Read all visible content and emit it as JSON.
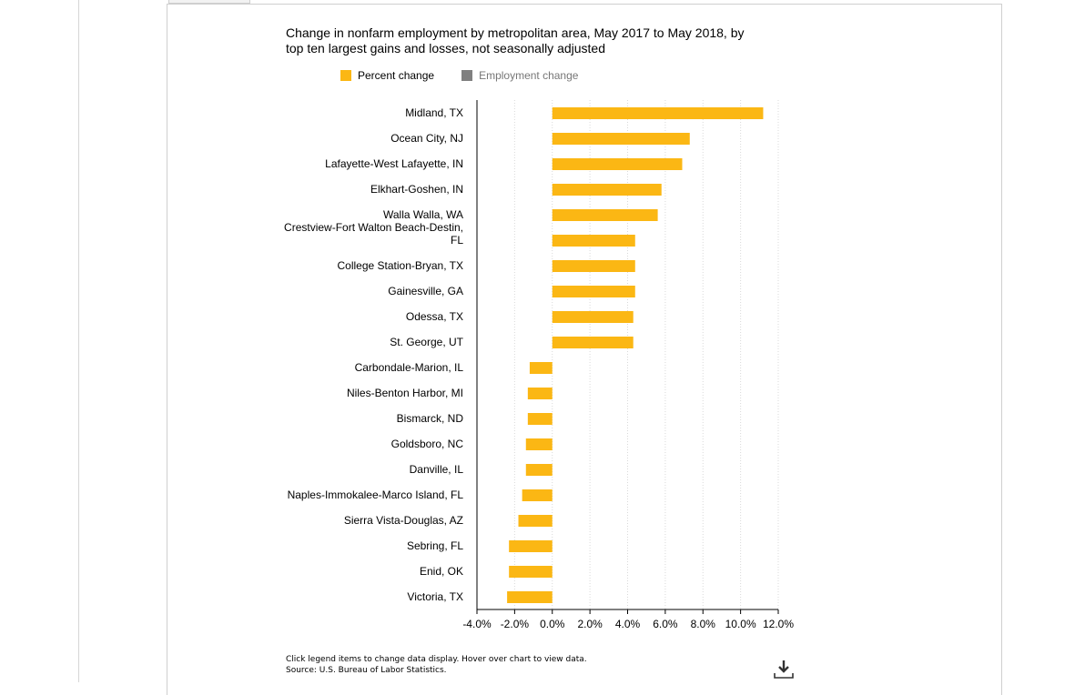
{
  "chart_data": {
    "type": "bar",
    "orientation": "horizontal",
    "title": "Change in nonfarm employment by metropolitan area, May 2017 to May 2018, by top ten largest gains and losses, not seasonally adjusted",
    "legend": {
      "position": "top",
      "items": [
        {
          "label": "Percent change",
          "color": "#fbb714",
          "active": true
        },
        {
          "label": "Employment change",
          "color": "#808080",
          "active": false
        }
      ]
    },
    "categories": [
      "Midland, TX",
      "Ocean City, NJ",
      "Lafayette-West Lafayette, IN",
      "Elkhart-Goshen, IN",
      "Walla Walla, WA",
      "Crestview-Fort Walton Beach-Destin, FL",
      "College Station-Bryan, TX",
      "Gainesville, GA",
      "Odessa, TX",
      "St. George, UT",
      "Carbondale-Marion, IL",
      "Niles-Benton Harbor, MI",
      "Bismarck, ND",
      "Goldsboro, NC",
      "Danville, IL",
      "Naples-Immokalee-Marco Island, FL",
      "Sierra Vista-Douglas, AZ",
      "Sebring, FL",
      "Enid, OK",
      "Victoria, TX"
    ],
    "series": [
      {
        "name": "Percent change",
        "color": "#fbb714",
        "values": [
          11.2,
          7.3,
          6.9,
          5.8,
          5.6,
          4.4,
          4.4,
          4.4,
          4.3,
          4.3,
          -1.2,
          -1.3,
          -1.3,
          -1.4,
          -1.4,
          -1.6,
          -1.8,
          -2.3,
          -2.3,
          -2.4
        ]
      }
    ],
    "xlim": [
      -4.0,
      12.0
    ],
    "xticks": [
      "-4.0%",
      "-2.0%",
      "0.0%",
      "2.0%",
      "4.0%",
      "6.0%",
      "8.0%",
      "10.0%",
      "12.0%"
    ],
    "xtick_values": [
      -4,
      -2,
      0,
      2,
      4,
      6,
      8,
      10,
      12
    ],
    "grid": true
  },
  "footer": {
    "line1": "Click legend items to change data display. Hover over chart to view data.",
    "line2": "Source: U.S. Bureau of Labor Statistics."
  },
  "icons": {
    "download": "download-icon"
  }
}
